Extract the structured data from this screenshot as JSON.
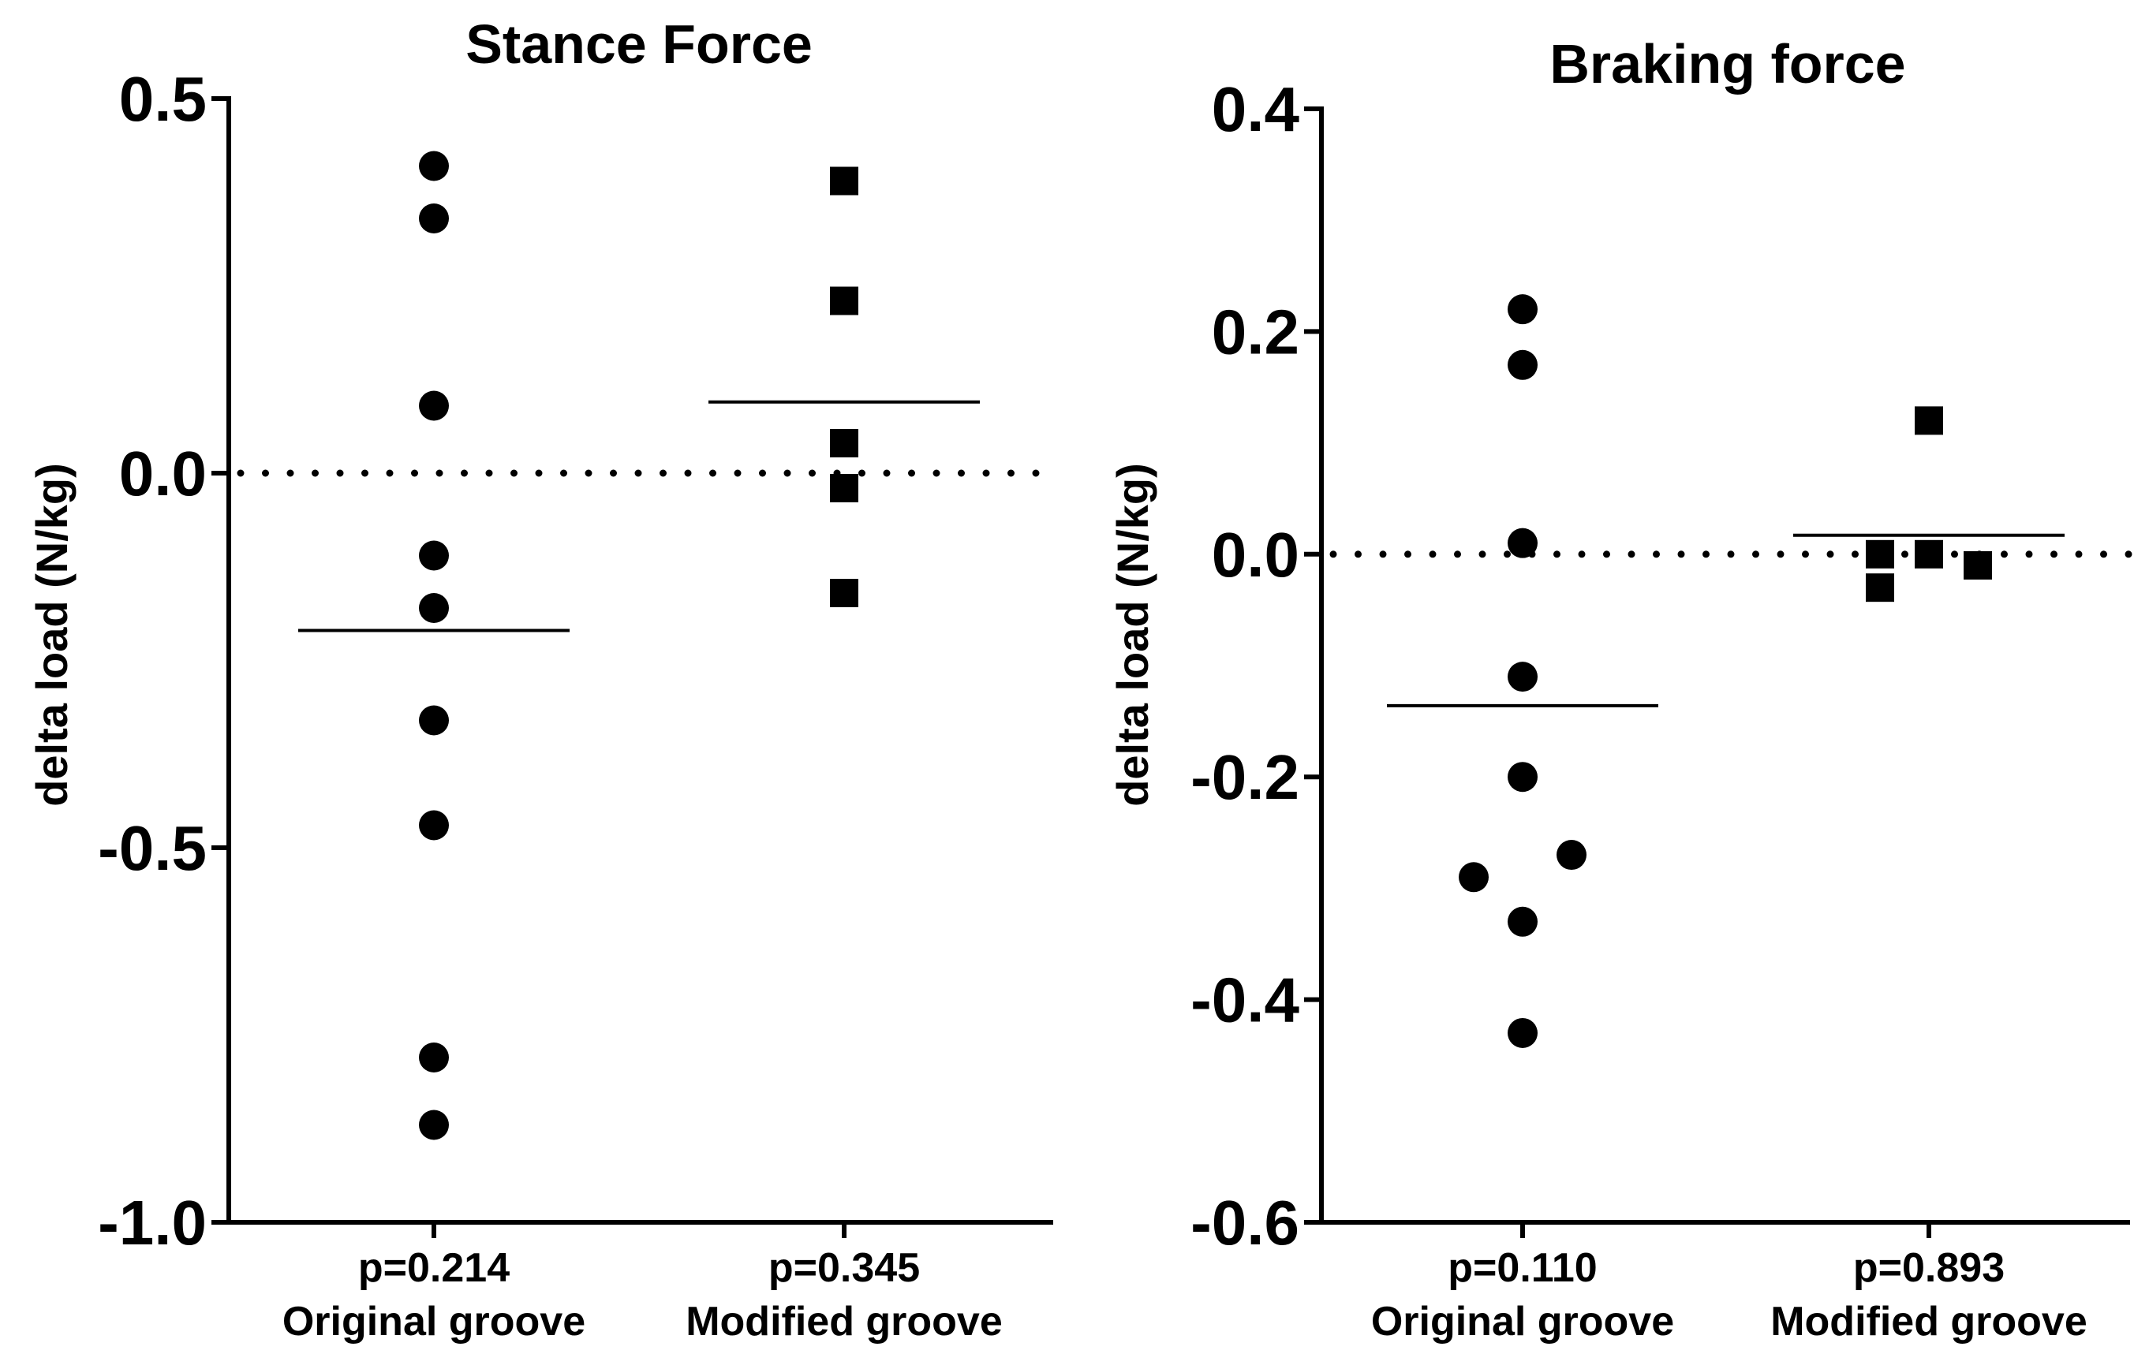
{
  "chart_data": [
    {
      "type": "scatter",
      "title": "Stance Force",
      "ylabel": "delta load (N/kg)",
      "xlabel": "",
      "ylim": [
        -1.0,
        0.5
      ],
      "yticks": [
        "0.5",
        "0.0",
        "-0.5",
        "-1.0"
      ],
      "ytick_values": [
        0.5,
        0.0,
        -0.5,
        -1.0
      ],
      "reference_line": 0.0,
      "groups": [
        {
          "name": "Original groove",
          "p_label": "p=0.214",
          "marker": "circle",
          "values": [
            0.41,
            0.34,
            0.09,
            -0.11,
            -0.18,
            -0.33,
            -0.47,
            -0.78,
            -0.87
          ],
          "mean": -0.21
        },
        {
          "name": "Modified groove",
          "p_label": "p=0.345",
          "marker": "square",
          "values": [
            0.39,
            0.23,
            0.04,
            -0.02,
            -0.16
          ],
          "mean": 0.095
        }
      ]
    },
    {
      "type": "scatter",
      "title": "Braking force",
      "ylabel": "delta load (N/kg)",
      "xlabel": "",
      "ylim": [
        -0.6,
        0.4
      ],
      "yticks": [
        "0.4",
        "0.2",
        "0.0",
        "-0.2",
        "-0.4",
        "-0.6"
      ],
      "ytick_values": [
        0.4,
        0.2,
        0.0,
        -0.2,
        -0.4,
        -0.6
      ],
      "reference_line": 0.0,
      "groups": [
        {
          "name": "Original groove",
          "p_label": "p=0.110",
          "marker": "circle",
          "values": [
            0.22,
            0.17,
            0.01,
            -0.11,
            -0.2,
            -0.27,
            -0.29,
            -0.33,
            -0.43
          ],
          "offsets": [
            0,
            0,
            0,
            0,
            0,
            1,
            -1,
            0,
            0
          ],
          "mean": -0.136
        },
        {
          "name": "Modified groove",
          "p_label": "p=0.893",
          "marker": "square",
          "values": [
            0.12,
            0.0,
            0.0,
            -0.01,
            -0.03
          ],
          "offsets": [
            0,
            0,
            -1,
            1,
            -1
          ],
          "mean": 0.017
        }
      ]
    }
  ]
}
